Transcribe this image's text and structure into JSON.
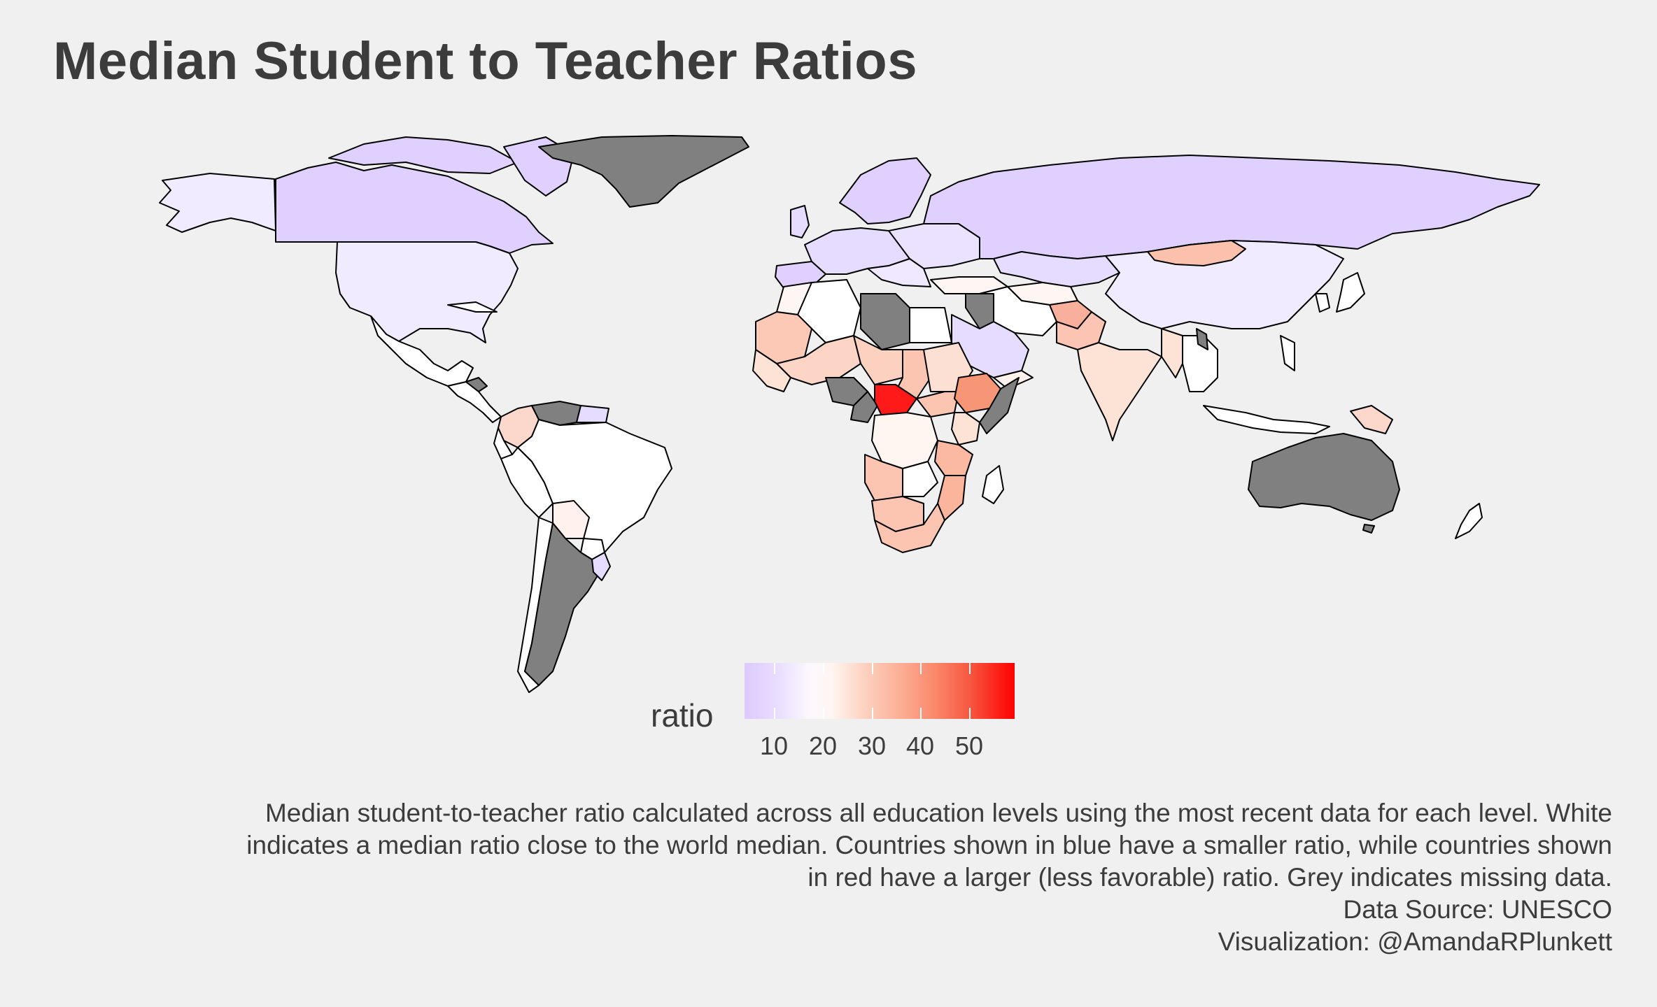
{
  "title": "Median Student to Teacher Ratios",
  "legend": {
    "title": "ratio",
    "ticks": [
      "10",
      "20",
      "30",
      "40",
      "50"
    ],
    "tick_values": [
      10,
      20,
      30,
      40,
      50
    ],
    "range": [
      3,
      58
    ],
    "colors": {
      "low": "#ddc9ff",
      "mid": "#ffffff",
      "high": "#ff0000",
      "missing": "#808080"
    }
  },
  "caption": {
    "line1": "Median student-to-teacher ratio calculated across all education levels using the most recent data for each level. White",
    "line2": "indicates a median ratio close to the world median. Countries shown in blue have a smaller ratio, while countries shown",
    "line3": "in red have a larger (less favorable) ratio. Grey indicates missing data.",
    "source": "Data Source: UNESCO",
    "credit": "Visualization: @AmandaRPlunkett"
  },
  "map": {
    "background": "#f0f0f0",
    "border_color": "#000000"
  }
}
